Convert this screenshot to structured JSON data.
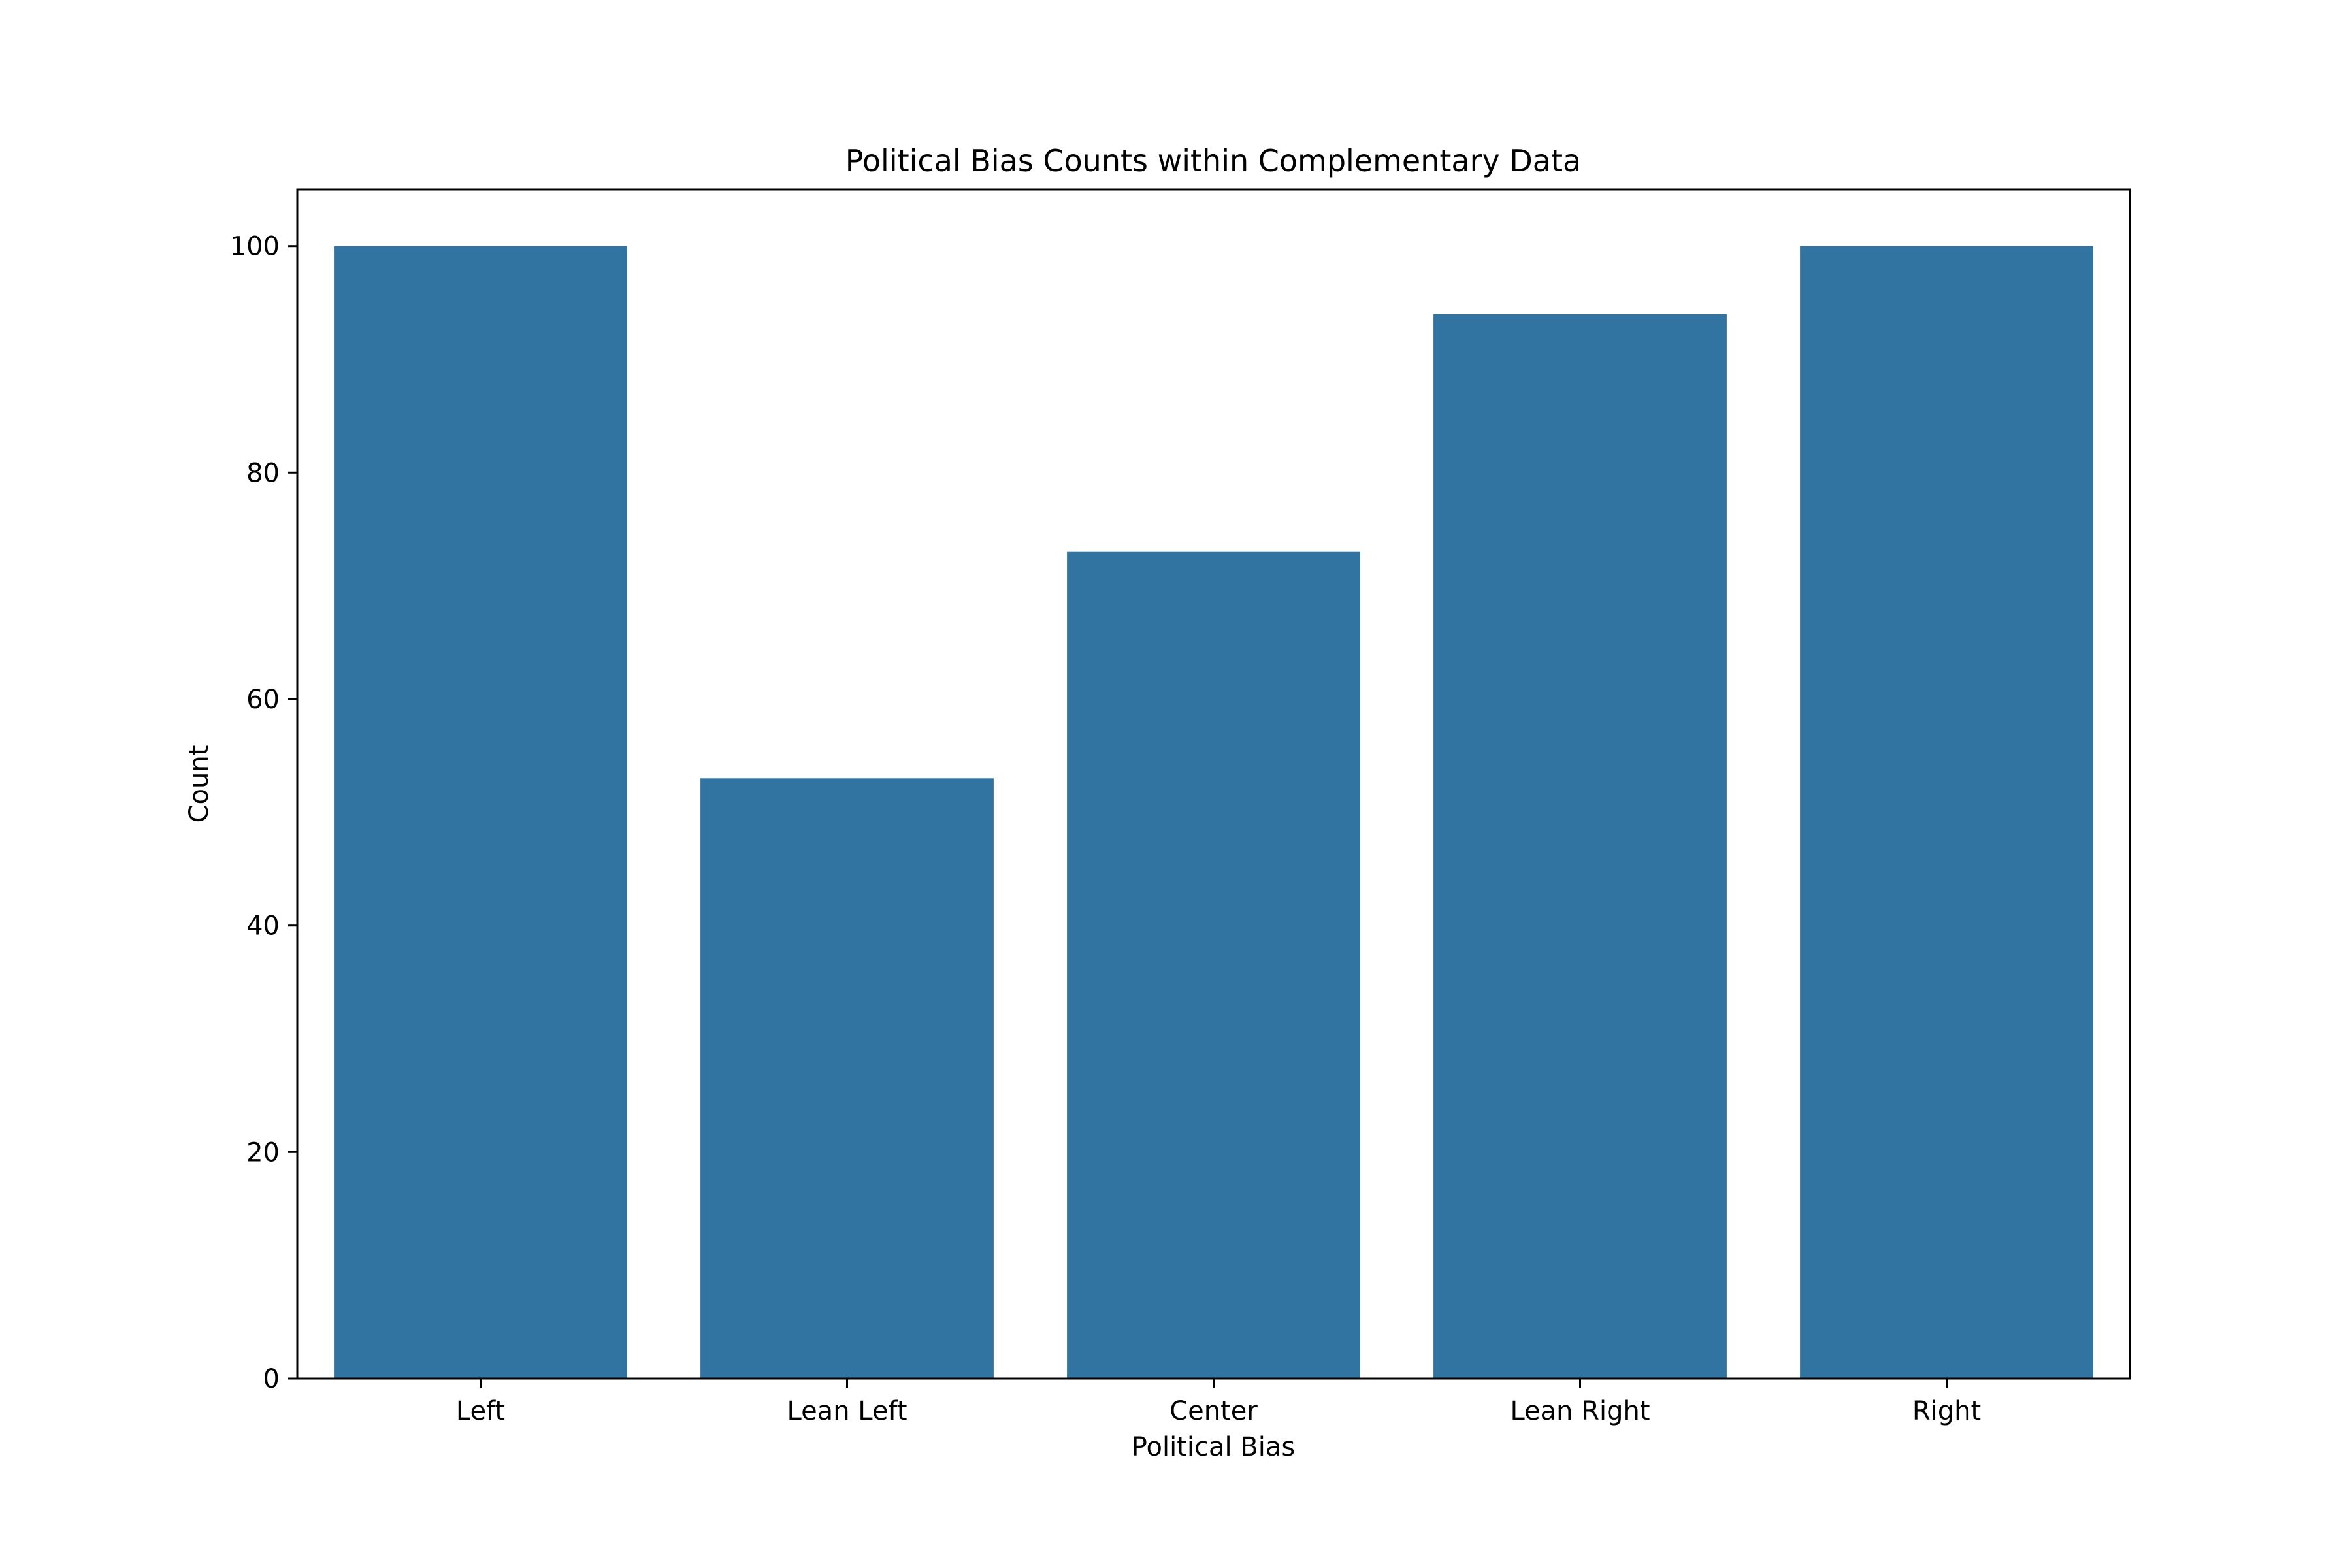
{
  "chart_data": {
    "type": "bar",
    "title": "Political Bias Counts within Complementary Data",
    "xlabel": "Political Bias",
    "ylabel": "Count",
    "categories": [
      "Left",
      "Lean Left",
      "Center",
      "Lean Right",
      "Right"
    ],
    "values": [
      100,
      53,
      73,
      94,
      100
    ],
    "ylim": [
      0,
      105
    ],
    "yticks": [
      0,
      20,
      40,
      60,
      80,
      100
    ],
    "grid": false,
    "legend": "none",
    "bar_color": "#3274a1"
  }
}
